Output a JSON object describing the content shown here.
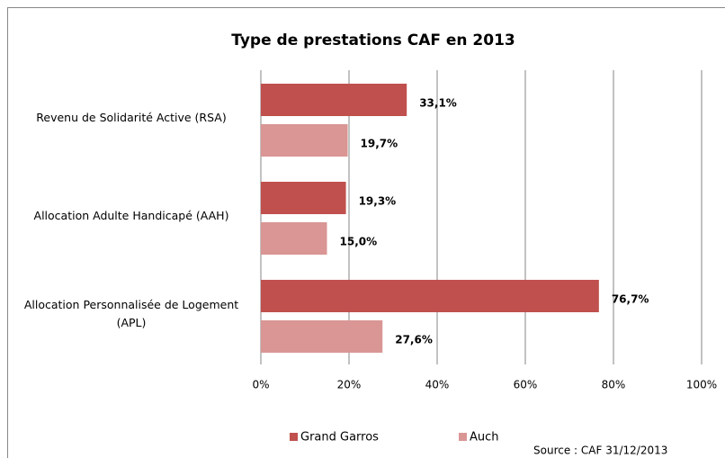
{
  "chart_data": {
    "type": "hbar",
    "title": "Type de prestations CAF en 2013",
    "categories": [
      "Revenu de Solidarité Active (RSA)",
      "Allocation Adulte Handicapé (AAH)",
      "Allocation Personnalisée de Logement (APL)"
    ],
    "series": [
      {
        "name": "Grand Garros",
        "color": "#c0504d",
        "values": [
          33.1,
          19.3,
          76.7
        ],
        "value_labels": [
          "33,1%",
          "19,3%",
          "76,7%"
        ]
      },
      {
        "name": "Auch",
        "color": "#d99694",
        "values": [
          19.7,
          15.0,
          27.6
        ],
        "value_labels": [
          "19,7%",
          "15,0%",
          "27,6%"
        ]
      }
    ],
    "xlim": [
      0,
      100
    ],
    "xticks": [
      {
        "value": 0,
        "label": "0%"
      },
      {
        "value": 20,
        "label": "20%"
      },
      {
        "value": 40,
        "label": "40%"
      },
      {
        "value": 60,
        "label": "60%"
      },
      {
        "value": 80,
        "label": "80%"
      },
      {
        "value": 100,
        "label": "100%"
      }
    ],
    "grid": true,
    "legend": "bottom",
    "source": "Source : CAF 31/12/2013"
  }
}
